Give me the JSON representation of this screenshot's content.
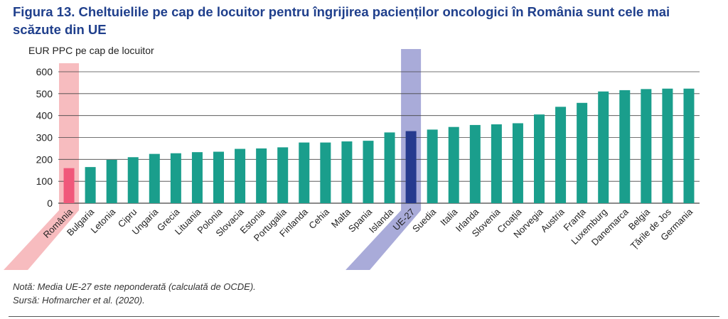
{
  "title": "Figura 13. Cheltuielile pe cap de locuitor pentru îngrijirea pacienților oncologici în România sunt cele mai scăzute din UE",
  "note": "Notă: Media UE-27 este neponderată (calculată de OCDE).",
  "source": "Sursă: Hofmarcher et al. (2020).",
  "colors": {
    "bar": "#1a9e8c",
    "highlight_romania": "#f0587a",
    "highlight_eu": "#263a8e",
    "band_romania": "#f7bcbf",
    "band_eu": "#a9abd9",
    "grid": "#444444"
  },
  "chart_data": {
    "type": "bar",
    "ylabel": "EUR PPC pe cap de locuitor",
    "ylim": [
      0,
      600
    ],
    "yticks": [
      0,
      100,
      200,
      300,
      400,
      500,
      600
    ],
    "grid": true,
    "highlighted": [
      "România",
      "UE-27"
    ],
    "categories": [
      "România",
      "Bulgaria",
      "Letonia",
      "Cipru",
      "Ungaria",
      "Grecia",
      "Lituania",
      "Polonia",
      "Slovacia",
      "Estonia",
      "Portugalia",
      "Finlanda",
      "Cehia",
      "Malta",
      "Spania",
      "Islanda",
      "UE-27",
      "Suedia",
      "Italia",
      "Irlanda",
      "Slovenia",
      "Croația",
      "Norvegia",
      "Austria",
      "Franța",
      "Luxemburg",
      "Danemarca",
      "Belgia",
      "Țările de Jos",
      "Germania"
    ],
    "values": [
      160,
      165,
      198,
      210,
      225,
      228,
      233,
      235,
      248,
      250,
      255,
      277,
      277,
      282,
      285,
      323,
      329,
      336,
      348,
      357,
      360,
      365,
      405,
      440,
      458,
      510,
      516,
      521,
      523,
      523
    ]
  }
}
